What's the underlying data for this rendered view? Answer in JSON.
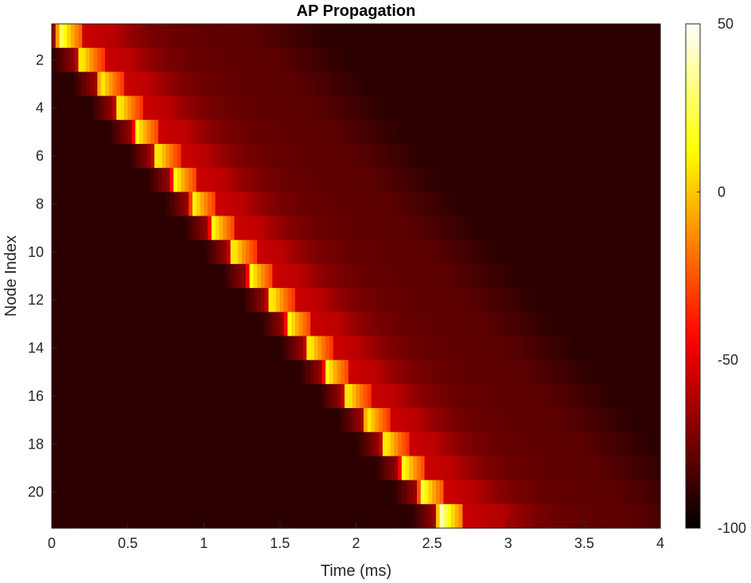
{
  "chart_data": {
    "type": "heatmap",
    "title": "AP Propagation",
    "xlabel": "Time (ms)",
    "ylabel": "Node Index",
    "xlim": [
      0,
      4
    ],
    "ylim": [
      0.5,
      21.5
    ],
    "y_direction": "reverse",
    "colormap": "hot",
    "clim": [
      -100,
      50
    ],
    "x_ticks": [
      0,
      0.5,
      1,
      1.5,
      2,
      2.5,
      3,
      3.5,
      4
    ],
    "x_tick_labels": [
      "0",
      "0.5",
      "1",
      "1.5",
      "2",
      "2.5",
      "3",
      "3.5",
      "4"
    ],
    "y_ticks": [
      2,
      4,
      6,
      8,
      10,
      12,
      14,
      16,
      18,
      20
    ],
    "y_tick_labels": [
      "2",
      "4",
      "6",
      "8",
      "10",
      "12",
      "14",
      "16",
      "18",
      "20"
    ],
    "colorbar_ticks": [
      50,
      0,
      -50,
      -100
    ],
    "colorbar_tick_labels": [
      "50",
      "0",
      "-50",
      "-100"
    ],
    "nodes": [
      1,
      2,
      3,
      4,
      5,
      6,
      7,
      8,
      9,
      10,
      11,
      12,
      13,
      14,
      15,
      16,
      17,
      18,
      19,
      20,
      21
    ],
    "spike_onset_ms": [
      0.02,
      0.16,
      0.29,
      0.41,
      0.53,
      0.66,
      0.78,
      0.9,
      1.03,
      1.16,
      1.28,
      1.41,
      1.53,
      1.66,
      1.78,
      1.91,
      2.04,
      2.16,
      2.28,
      2.4,
      2.52
    ],
    "peak_mV": [
      30,
      15,
      15,
      15,
      15,
      15,
      15,
      15,
      15,
      15,
      15,
      15,
      15,
      15,
      15,
      15,
      15,
      15,
      18,
      25,
      45
    ],
    "resting_mV": -80
  }
}
